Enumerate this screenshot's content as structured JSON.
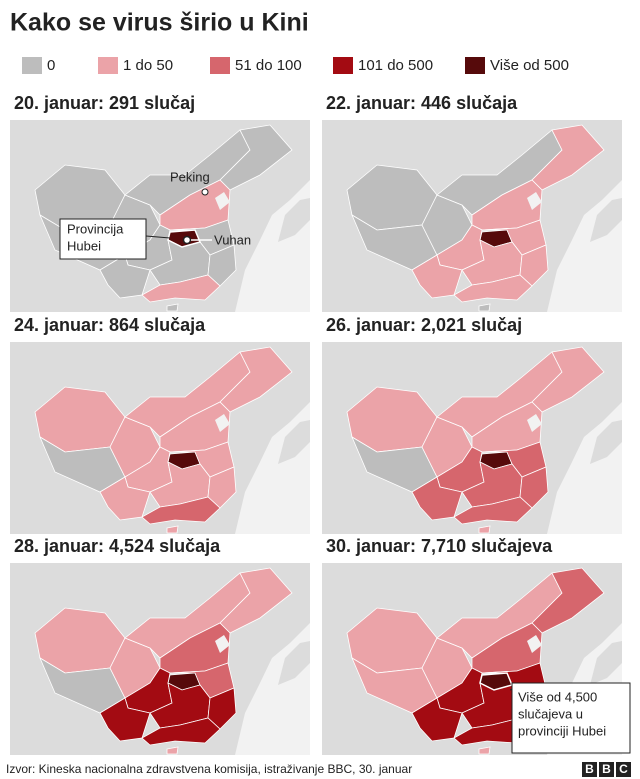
{
  "title": "Kako se virus širio u Kini",
  "legend": {
    "items": [
      {
        "label": "0",
        "color": "#bdbdbd"
      },
      {
        "label": "1 do 50",
        "color": "#eba3a8"
      },
      {
        "label": "51 do 100",
        "color": "#d6666d"
      },
      {
        "label": "101 do 500",
        "color": "#a30b12"
      },
      {
        "label": "Više od 500",
        "color": "#560a0b"
      }
    ]
  },
  "panels": [
    {
      "title": "20. januar: 291 slučaj"
    },
    {
      "title": "22. januar: 446 slučaja"
    },
    {
      "title": "24. januar: 864 slučaja"
    },
    {
      "title": "26. januar: 2,021 slučaj"
    },
    {
      "title": "28. januar: 4,524 slučaja"
    },
    {
      "title": "30. januar: 7,710 slučajeva"
    }
  ],
  "annotations": {
    "beijing": "Peking",
    "wuhan": "Vuhan",
    "hubei": [
      "Provincija",
      "Hubei"
    ],
    "hubei_total": [
      "Više od 4,500",
      "slučajeva u",
      "provinciji Hubei"
    ]
  },
  "source": "Izvor: Kineska nacionalna zdravstvena komisija, istraživanje BBC, 30. januar",
  "logo": [
    "B",
    "B",
    "C"
  ]
}
